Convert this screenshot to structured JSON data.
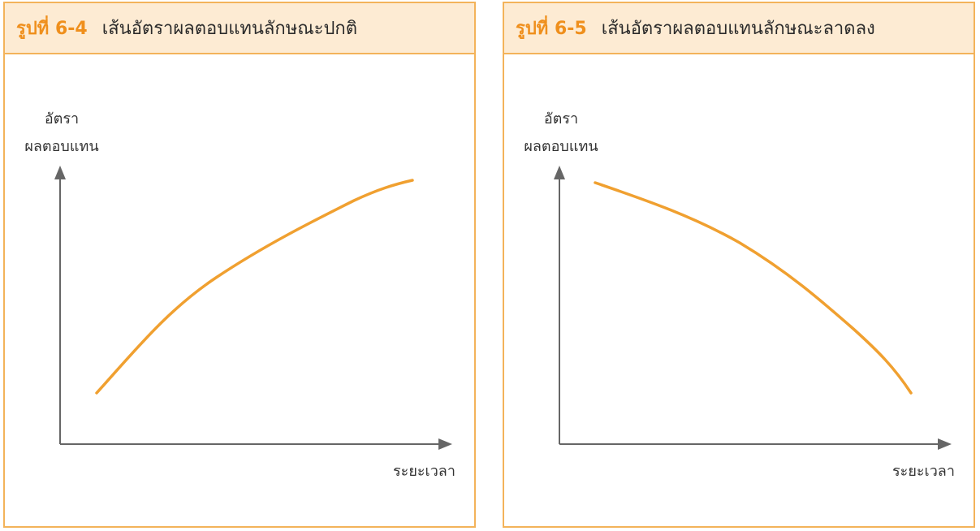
{
  "figures": [
    {
      "number": "รูปที่ 6-4",
      "title": "เส้นอัตราผลตอบแทนลักษณะปกติ",
      "ylabel_line1": "อัตรา",
      "ylabel_line2": "ผลตอบแทน",
      "xlabel": "ระยะเวลา"
    },
    {
      "number": "รูปที่ 6-5",
      "title": "เส้นอัตราผลตอบแทนลักษณะลาดลง",
      "ylabel_line1": "อัตรา",
      "ylabel_line2": "ผลตอบแทน",
      "xlabel": "ระยะเวลา"
    }
  ],
  "colors": {
    "accent": "#ef8f1c",
    "curve": "#f0a030",
    "header_bg": "#fdebd3",
    "border": "#f3b35a",
    "axis": "#666666"
  }
}
